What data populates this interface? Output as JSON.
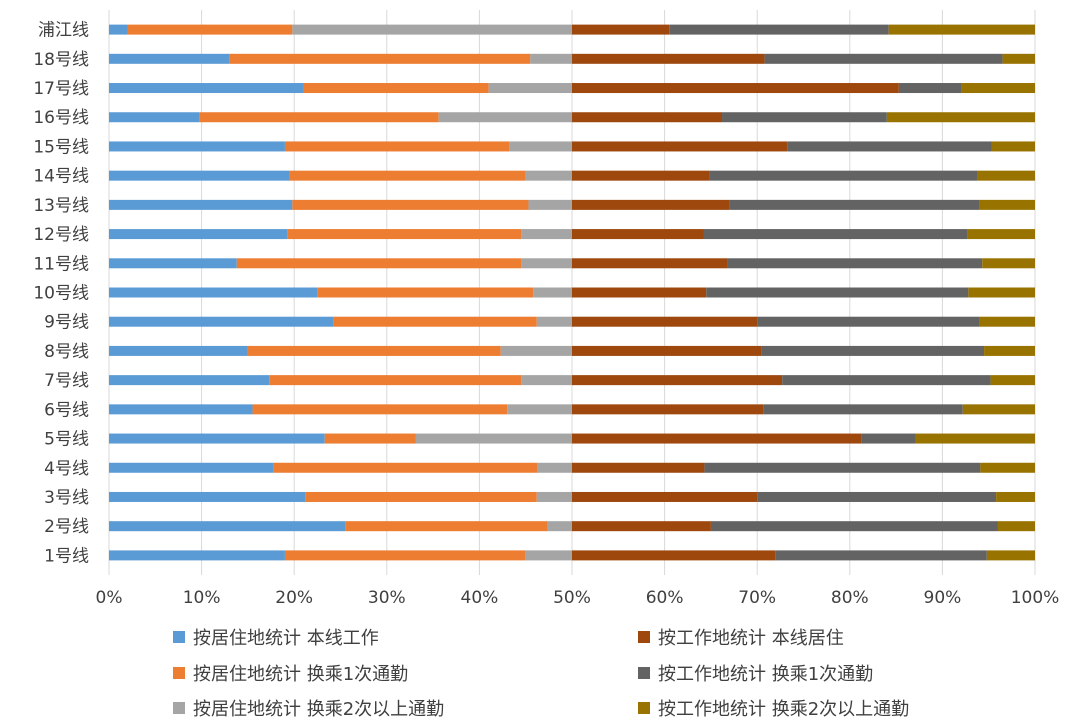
{
  "chart_data": {
    "type": "bar",
    "orientation": "horizontal",
    "stacked": true,
    "categories": [
      "浦江线",
      "18号线",
      "17号线",
      "16号线",
      "15号线",
      "14号线",
      "13号线",
      "12号线",
      "11号线",
      "10号线",
      "9号线",
      "8号线",
      "7号线",
      "6号线",
      "5号线",
      "4号线",
      "3号线",
      "2号线",
      "1号线"
    ],
    "series": [
      {
        "name": "按居住地统计 本线工作",
        "color": "#5b9bd5",
        "values": [
          2.0,
          13.0,
          21.0,
          9.8,
          19.0,
          19.5,
          19.8,
          19.3,
          13.8,
          22.5,
          24.2,
          15.0,
          17.3,
          15.5,
          23.3,
          17.8,
          21.2,
          25.5,
          19.0
        ]
      },
      {
        "name": "按居住地统计 换乘1次通勤",
        "color": "#ed7d31",
        "values": [
          17.8,
          32.5,
          20.0,
          25.8,
          24.2,
          25.5,
          25.5,
          25.2,
          30.7,
          23.3,
          22.0,
          27.3,
          27.2,
          27.5,
          9.8,
          28.5,
          25.0,
          21.8,
          26.0
        ]
      },
      {
        "name": "按居住地统计 换乘2次以上通勤",
        "color": "#a5a5a5",
        "values": [
          30.2,
          4.5,
          9.0,
          14.4,
          6.8,
          5.0,
          4.7,
          5.5,
          5.5,
          4.2,
          3.8,
          7.7,
          5.5,
          7.0,
          16.9,
          3.7,
          3.8,
          2.7,
          5.0
        ]
      },
      {
        "name": "按工作地统计 本线居住",
        "color": "#9e480e",
        "values": [
          10.5,
          20.8,
          35.3,
          16.2,
          23.3,
          14.8,
          17.0,
          14.2,
          16.8,
          14.5,
          20.0,
          20.5,
          22.7,
          20.7,
          31.3,
          14.3,
          20.0,
          15.0,
          22.0
        ]
      },
      {
        "name": "按工作地统计 换乘1次通勤",
        "color": "#636363",
        "values": [
          23.7,
          25.7,
          6.8,
          17.8,
          22.0,
          29.0,
          27.0,
          28.5,
          27.5,
          28.3,
          24.0,
          24.0,
          22.5,
          21.5,
          5.8,
          29.8,
          25.8,
          31.0,
          22.8
        ]
      },
      {
        "name": "按工作地统计 换乘2次以上通勤",
        "color": "#997300",
        "values": [
          15.8,
          3.5,
          7.9,
          16.0,
          4.7,
          6.2,
          6.0,
          7.3,
          5.7,
          7.2,
          6.0,
          5.5,
          4.8,
          7.8,
          12.9,
          5.9,
          4.2,
          4.0,
          5.2
        ]
      }
    ],
    "xlim": [
      0,
      100
    ],
    "x_ticks": [
      "0%",
      "10%",
      "20%",
      "30%",
      "40%",
      "50%",
      "60%",
      "70%",
      "80%",
      "90%",
      "100%"
    ],
    "grid": "vertical",
    "legend_position": "bottom",
    "title": "",
    "xlabel": "",
    "ylabel": ""
  }
}
